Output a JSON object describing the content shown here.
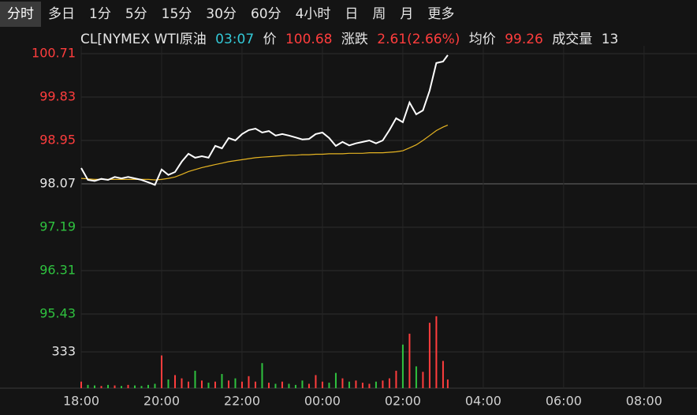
{
  "tabs": [
    "分时",
    "多日",
    "1分",
    "5分",
    "15分",
    "30分",
    "60分",
    "4小时",
    "日",
    "周",
    "月",
    "更多"
  ],
  "chart_data": {
    "type": "line",
    "header": {
      "symbol": "CL[NYMEX WTI原油",
      "time": "03:07",
      "price_label": "价",
      "price": "100.68",
      "change_label": "涨跌",
      "change": "2.61(2.66%)",
      "avg_label": "均价",
      "avg": "99.26",
      "volume_label": "成交量",
      "volume": "13"
    },
    "x": [
      "18:00",
      "18:10",
      "18:20",
      "18:30",
      "18:40",
      "18:50",
      "19:00",
      "19:10",
      "19:20",
      "19:30",
      "19:40",
      "19:50",
      "20:00",
      "20:10",
      "20:20",
      "20:30",
      "20:40",
      "20:50",
      "21:00",
      "21:10",
      "21:20",
      "21:30",
      "21:40",
      "21:50",
      "22:00",
      "22:10",
      "22:20",
      "22:30",
      "22:40",
      "22:50",
      "23:00",
      "23:10",
      "23:20",
      "23:30",
      "23:40",
      "23:50",
      "00:00",
      "00:10",
      "00:20",
      "00:30",
      "00:40",
      "00:50",
      "01:00",
      "01:10",
      "01:20",
      "01:30",
      "01:40",
      "01:50",
      "02:00",
      "02:10",
      "02:20",
      "02:30",
      "02:40",
      "02:50",
      "03:00",
      "03:07"
    ],
    "series": [
      {
        "color": "#ffffff",
        "values": [
          98.39,
          98.15,
          98.13,
          98.17,
          98.15,
          98.21,
          98.18,
          98.21,
          98.18,
          98.15,
          98.1,
          98.05,
          98.36,
          98.25,
          98.31,
          98.52,
          98.68,
          98.6,
          98.63,
          98.6,
          98.84,
          98.79,
          99.0,
          98.95,
          99.08,
          99.16,
          99.19,
          99.11,
          99.14,
          99.05,
          99.08,
          99.05,
          99.01,
          98.97,
          98.98,
          99.08,
          99.11,
          99.0,
          98.84,
          98.92,
          98.85,
          98.89,
          98.92,
          98.95,
          98.89,
          98.95,
          99.16,
          99.4,
          99.32,
          99.72,
          99.48,
          99.56,
          99.96,
          100.52,
          100.55,
          100.68
        ]
      },
      {
        "color": "#e6b422",
        "values": [
          98.18,
          98.17,
          98.16,
          98.16,
          98.16,
          98.16,
          98.16,
          98.16,
          98.16,
          98.16,
          98.16,
          98.15,
          98.16,
          98.18,
          98.21,
          98.26,
          98.32,
          98.36,
          98.4,
          98.43,
          98.46,
          98.49,
          98.52,
          98.54,
          98.56,
          98.58,
          98.6,
          98.61,
          98.62,
          98.63,
          98.64,
          98.65,
          98.65,
          98.66,
          98.66,
          98.67,
          98.67,
          98.68,
          98.68,
          98.68,
          98.69,
          98.69,
          98.69,
          98.7,
          98.7,
          98.7,
          98.71,
          98.72,
          98.74,
          98.8,
          98.86,
          98.95,
          99.05,
          99.15,
          99.22,
          99.26
        ]
      }
    ],
    "ylim": [
      95.43,
      100.71
    ],
    "yticks": [
      100.71,
      99.83,
      98.95,
      98.07,
      97.19,
      96.31,
      95.43
    ],
    "reference_line": 98.07,
    "up_color": "#ff3d3d",
    "down_color": "#2fc23f",
    "neutral_color": "#e6e6e6",
    "xlim": [
      "18:00",
      "09:19"
    ],
    "xticks": [
      "18:00",
      "20:00",
      "22:00",
      "00:00",
      "02:00",
      "04:00",
      "06:00",
      "08:00"
    ],
    "volume": {
      "values": [
        60,
        30,
        25,
        20,
        30,
        25,
        20,
        30,
        25,
        20,
        30,
        40,
        300,
        80,
        120,
        90,
        60,
        160,
        70,
        50,
        60,
        130,
        70,
        90,
        60,
        110,
        60,
        230,
        50,
        40,
        60,
        40,
        30,
        70,
        40,
        120,
        60,
        50,
        140,
        90,
        60,
        70,
        50,
        40,
        60,
        70,
        90,
        160,
        400,
        500,
        200,
        150,
        600,
        660,
        250,
        80
      ],
      "ylim": [
        0,
        666
      ],
      "yticks": [
        333
      ]
    },
    "grid": true
  }
}
